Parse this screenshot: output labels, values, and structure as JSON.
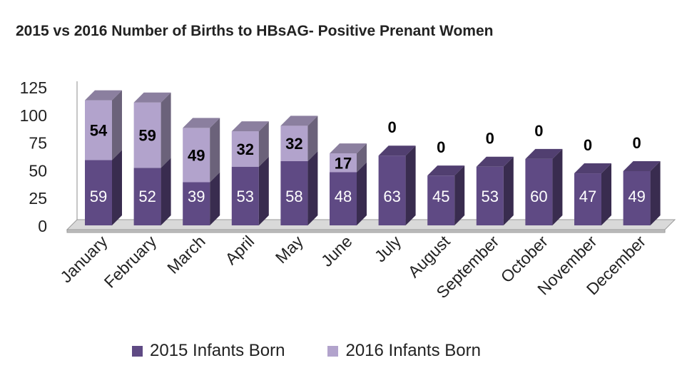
{
  "chart_data": {
    "type": "bar",
    "stacked": true,
    "title": "2015 vs 2016 Number of Births to HBsAG- Positive Prenant Women",
    "categories": [
      "January",
      "February",
      "March",
      "April",
      "May",
      "June",
      "July",
      "August",
      "September",
      "October",
      "November",
      "December"
    ],
    "series": [
      {
        "name": "2015 Infants Born",
        "values": [
          59,
          52,
          39,
          53,
          58,
          48,
          63,
          45,
          53,
          60,
          47,
          49
        ],
        "color": "#5f4a84"
      },
      {
        "name": "2016 Infants Born",
        "values": [
          54,
          59,
          49,
          32,
          32,
          17,
          0,
          0,
          0,
          0,
          0,
          0
        ],
        "color": "#b2a3cc"
      }
    ],
    "y_ticks": [
      "0",
      "25",
      "50",
      "75",
      "100",
      "125"
    ],
    "ylim": [
      0,
      125
    ],
    "grid": false,
    "legend_position": "bottom"
  }
}
